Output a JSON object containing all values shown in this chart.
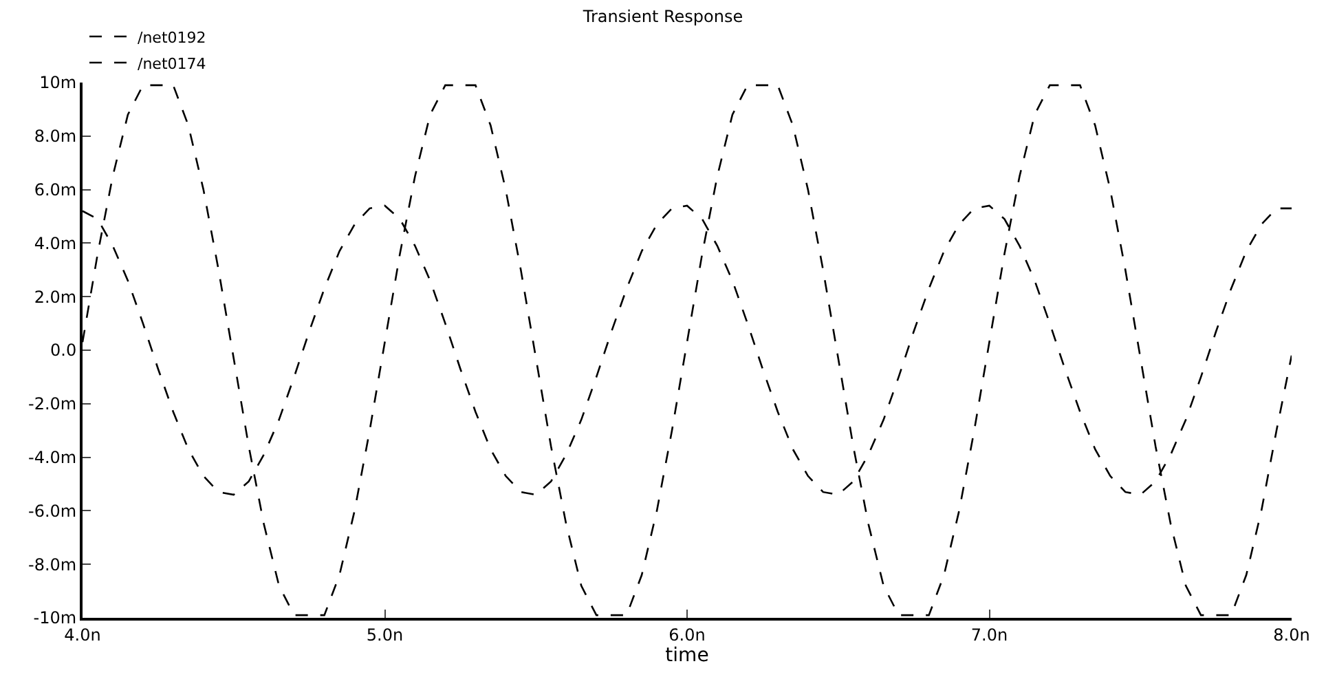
{
  "chart_data": {
    "type": "line",
    "title": "Transient Response",
    "xlabel": "time",
    "x": [
      4.0,
      4.05,
      4.1,
      4.15,
      4.2,
      4.25,
      4.3,
      4.35,
      4.4,
      4.45,
      4.5,
      4.55,
      4.6,
      4.65,
      4.7,
      4.75,
      4.8,
      4.85,
      4.9,
      4.95,
      5.0,
      5.05,
      5.1,
      5.15,
      5.2,
      5.25,
      5.3,
      5.35,
      5.4,
      5.45,
      5.5,
      5.55,
      5.6,
      5.65,
      5.7,
      5.75,
      5.8,
      5.85,
      5.9,
      5.95,
      6.0,
      6.05,
      6.1,
      6.15,
      6.2,
      6.25,
      6.3,
      6.35,
      6.4,
      6.45,
      6.5,
      6.55,
      6.6,
      6.65,
      6.7,
      6.75,
      6.8,
      6.85,
      6.9,
      6.95,
      7.0,
      7.05,
      7.1,
      7.15,
      7.2,
      7.25,
      7.3,
      7.35,
      7.4,
      7.45,
      7.5,
      7.55,
      7.6,
      7.65,
      7.7,
      7.75,
      7.8,
      7.85,
      7.9,
      7.95,
      8.0
    ],
    "series": [
      {
        "name": "/net0192",
        "color": "#000000",
        "values": [
          0.3,
          3.6,
          6.5,
          8.8,
          9.9,
          9.9,
          9.9,
          8.4,
          6.0,
          3.0,
          -0.3,
          -3.6,
          -6.5,
          -8.8,
          -9.9,
          -9.9,
          -9.9,
          -8.4,
          -6.0,
          -3.0,
          0.3,
          3.6,
          6.5,
          8.8,
          9.9,
          9.9,
          9.9,
          8.4,
          6.0,
          3.0,
          -0.3,
          -3.6,
          -6.5,
          -8.8,
          -9.9,
          -9.9,
          -9.9,
          -8.4,
          -6.0,
          -3.0,
          0.3,
          3.6,
          6.5,
          8.8,
          9.9,
          9.9,
          9.9,
          8.4,
          6.0,
          3.0,
          -0.3,
          -3.6,
          -6.5,
          -8.8,
          -9.9,
          -9.9,
          -9.9,
          -8.4,
          -6.0,
          -3.0,
          0.3,
          3.6,
          6.5,
          8.8,
          9.9,
          9.9,
          9.9,
          8.4,
          6.0,
          3.0,
          -0.3,
          -3.6,
          -6.5,
          -8.8,
          -9.9,
          -9.9,
          -9.9,
          -8.4,
          -6.0,
          -3.0,
          -0.2
        ]
      },
      {
        "name": "/net0174",
        "color": "#000000",
        "values": [
          5.2,
          4.9,
          3.9,
          2.6,
          1.0,
          -0.7,
          -2.3,
          -3.7,
          -4.7,
          -5.3,
          -5.4,
          -4.9,
          -3.9,
          -2.6,
          -1.0,
          0.7,
          2.3,
          3.7,
          4.7,
          5.3,
          5.4,
          4.9,
          3.9,
          2.6,
          1.0,
          -0.7,
          -2.3,
          -3.7,
          -4.7,
          -5.3,
          -5.4,
          -4.9,
          -3.9,
          -2.6,
          -1.0,
          0.7,
          2.3,
          3.7,
          4.7,
          5.3,
          5.4,
          4.9,
          3.9,
          2.6,
          1.0,
          -0.7,
          -2.3,
          -3.7,
          -4.7,
          -5.3,
          -5.4,
          -4.9,
          -3.9,
          -2.6,
          -1.0,
          0.7,
          2.3,
          3.7,
          4.7,
          5.3,
          5.4,
          4.9,
          3.9,
          2.6,
          1.0,
          -0.7,
          -2.3,
          -3.7,
          -4.7,
          -5.3,
          -5.4,
          -4.9,
          -3.9,
          -2.6,
          -1.0,
          0.7,
          2.3,
          3.7,
          4.7,
          5.3,
          5.3
        ]
      }
    ],
    "xlim": [
      4,
      8
    ],
    "xticks": [
      {
        "value": 4,
        "label": "4.0n"
      },
      {
        "value": 5,
        "label": "5.0n"
      },
      {
        "value": 6,
        "label": "6.0n"
      },
      {
        "value": 7,
        "label": "7.0n"
      },
      {
        "value": 8,
        "label": "8.0n"
      }
    ],
    "ylim": [
      -10,
      10
    ],
    "yticks": [
      {
        "value": -10,
        "label": "-10m"
      },
      {
        "value": -8,
        "label": "-8.0m"
      },
      {
        "value": -6,
        "label": "-6.0m"
      },
      {
        "value": -4,
        "label": "-4.0m"
      },
      {
        "value": -2,
        "label": "-2.0m"
      },
      {
        "value": 0,
        "label": "0.0"
      },
      {
        "value": 2,
        "label": "2.0m"
      },
      {
        "value": 4,
        "label": "4.0m"
      },
      {
        "value": 6,
        "label": "6.0m"
      },
      {
        "value": 8,
        "label": "8.0m"
      },
      {
        "value": 10,
        "label": "10m"
      }
    ],
    "legend": "top left",
    "line_style": "dashed",
    "marker": "none"
  }
}
